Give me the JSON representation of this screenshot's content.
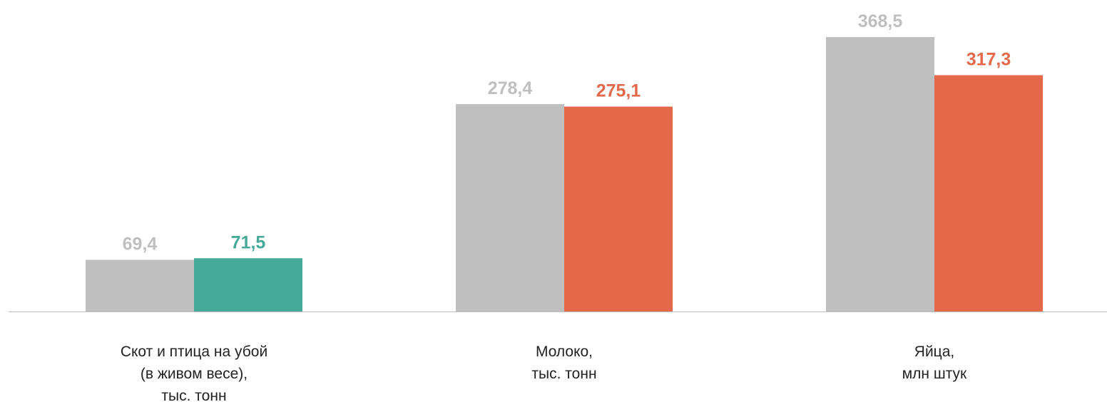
{
  "chart_data": {
    "type": "bar",
    "categories": [
      "Скот и птица на убой\n(в живом весе),\nтыс. тонн",
      "Молоко,\nтыс. тонн",
      "Яйца,\nмлн штук"
    ],
    "series": [
      {
        "color": "#bfbfbf",
        "values": [
          69.4,
          278.4,
          368.5
        ],
        "value_labels": [
          "69,4",
          "278,4",
          "368,5"
        ]
      },
      {
        "colors": [
          "#46aa9a",
          "#e3694a",
          "#e3694a"
        ],
        "values": [
          71.5,
          275.1,
          317.3
        ],
        "value_labels": [
          "71,5",
          "275,1",
          "317,3"
        ]
      }
    ],
    "ylim": [
      0,
      400
    ]
  }
}
